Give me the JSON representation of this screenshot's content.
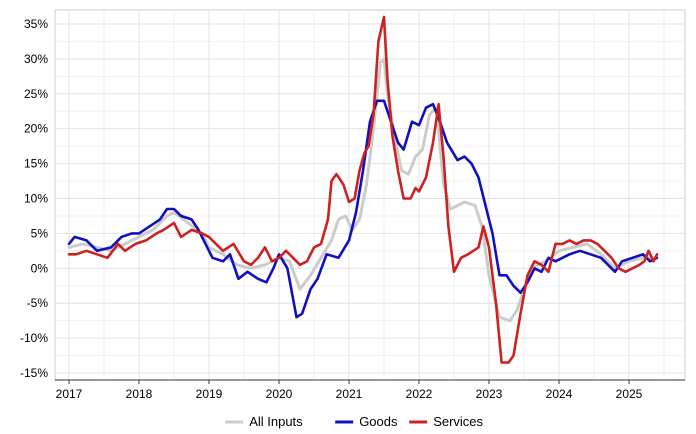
{
  "chart_data": {
    "type": "line",
    "title": "",
    "xlabel": "",
    "ylabel": "",
    "xlim": [
      2016.8,
      2025.8
    ],
    "ylim": [
      -16,
      37
    ],
    "x_ticks": [
      2017,
      2018,
      2019,
      2020,
      2021,
      2022,
      2023,
      2024,
      2025
    ],
    "x_tick_labels": [
      "2017",
      "2018",
      "2019",
      "2020",
      "2021",
      "2022",
      "2023",
      "2024",
      "2025"
    ],
    "y_ticks": [
      -15,
      -10,
      -5,
      0,
      5,
      10,
      15,
      20,
      25,
      30,
      35
    ],
    "y_tick_labels": [
      "-15%",
      "-10%",
      "-5%",
      "0%",
      "5%",
      "10%",
      "15%",
      "20%",
      "25%",
      "30%",
      "35%"
    ],
    "grid": true,
    "legend_position": "bottom",
    "series": [
      {
        "name": "All Inputs",
        "color": "#cccccc",
        "points": [
          [
            2017.0,
            3.0
          ],
          [
            2017.2,
            3.5
          ],
          [
            2017.4,
            3.0
          ],
          [
            2017.6,
            2.5
          ],
          [
            2017.8,
            3.5
          ],
          [
            2018.0,
            4.5
          ],
          [
            2018.2,
            5.5
          ],
          [
            2018.4,
            7.5
          ],
          [
            2018.5,
            8.0
          ],
          [
            2018.7,
            6.5
          ],
          [
            2018.9,
            5.0
          ],
          [
            2019.0,
            3.0
          ],
          [
            2019.2,
            2.0
          ],
          [
            2019.4,
            0.5
          ],
          [
            2019.6,
            0.0
          ],
          [
            2019.8,
            0.5
          ],
          [
            2020.0,
            1.5
          ],
          [
            2020.15,
            1.0
          ],
          [
            2020.3,
            -3.0
          ],
          [
            2020.45,
            -1.0
          ],
          [
            2020.6,
            1.5
          ],
          [
            2020.75,
            4.0
          ],
          [
            2020.85,
            7.0
          ],
          [
            2020.95,
            7.5
          ],
          [
            2021.05,
            5.5
          ],
          [
            2021.15,
            7.0
          ],
          [
            2021.25,
            12.0
          ],
          [
            2021.35,
            20.0
          ],
          [
            2021.45,
            29.5
          ],
          [
            2021.5,
            30.0
          ],
          [
            2021.55,
            25.0
          ],
          [
            2021.65,
            19.0
          ],
          [
            2021.75,
            14.0
          ],
          [
            2021.85,
            13.5
          ],
          [
            2021.95,
            16.0
          ],
          [
            2022.05,
            17.0
          ],
          [
            2022.15,
            22.0
          ],
          [
            2022.25,
            23.0
          ],
          [
            2022.35,
            12.0
          ],
          [
            2022.45,
            8.5
          ],
          [
            2022.55,
            9.0
          ],
          [
            2022.65,
            9.5
          ],
          [
            2022.8,
            9.0
          ],
          [
            2022.9,
            6.0
          ],
          [
            2023.0,
            -1.0
          ],
          [
            2023.15,
            -7.0
          ],
          [
            2023.3,
            -7.5
          ],
          [
            2023.4,
            -6.0
          ],
          [
            2023.5,
            -3.0
          ],
          [
            2023.6,
            0.0
          ],
          [
            2023.8,
            1.0
          ],
          [
            2024.0,
            2.5
          ],
          [
            2024.2,
            3.0
          ],
          [
            2024.4,
            3.5
          ],
          [
            2024.6,
            2.0
          ],
          [
            2024.8,
            0.0
          ],
          [
            2025.0,
            1.0
          ],
          [
            2025.2,
            1.5
          ],
          [
            2025.33,
            1.5
          ]
        ]
      },
      {
        "name": "Goods",
        "color": "#1010c0",
        "points": [
          [
            2017.0,
            3.5
          ],
          [
            2017.08,
            4.5
          ],
          [
            2017.25,
            4.0
          ],
          [
            2017.4,
            2.5
          ],
          [
            2017.6,
            3.0
          ],
          [
            2017.75,
            4.5
          ],
          [
            2017.9,
            5.0
          ],
          [
            2018.0,
            5.0
          ],
          [
            2018.15,
            6.0
          ],
          [
            2018.3,
            7.0
          ],
          [
            2018.4,
            8.5
          ],
          [
            2018.5,
            8.5
          ],
          [
            2018.6,
            7.5
          ],
          [
            2018.75,
            7.0
          ],
          [
            2018.85,
            5.5
          ],
          [
            2018.95,
            3.5
          ],
          [
            2019.05,
            1.5
          ],
          [
            2019.2,
            1.0
          ],
          [
            2019.3,
            2.0
          ],
          [
            2019.42,
            -1.5
          ],
          [
            2019.55,
            -0.5
          ],
          [
            2019.7,
            -1.5
          ],
          [
            2019.82,
            -2.0
          ],
          [
            2019.92,
            0.0
          ],
          [
            2020.0,
            2.0
          ],
          [
            2020.12,
            0.0
          ],
          [
            2020.25,
            -7.0
          ],
          [
            2020.33,
            -6.5
          ],
          [
            2020.45,
            -3.0
          ],
          [
            2020.55,
            -1.5
          ],
          [
            2020.68,
            2.0
          ],
          [
            2020.85,
            1.5
          ],
          [
            2021.0,
            4.0
          ],
          [
            2021.1,
            8.0
          ],
          [
            2021.2,
            14.0
          ],
          [
            2021.3,
            21.0
          ],
          [
            2021.4,
            24.0
          ],
          [
            2021.5,
            24.0
          ],
          [
            2021.6,
            21.0
          ],
          [
            2021.7,
            18.0
          ],
          [
            2021.78,
            17.0
          ],
          [
            2021.9,
            21.0
          ],
          [
            2022.0,
            20.5
          ],
          [
            2022.1,
            23.0
          ],
          [
            2022.2,
            23.5
          ],
          [
            2022.3,
            21.0
          ],
          [
            2022.4,
            18.0
          ],
          [
            2022.55,
            15.5
          ],
          [
            2022.65,
            16.0
          ],
          [
            2022.75,
            15.0
          ],
          [
            2022.85,
            13.0
          ],
          [
            2022.95,
            9.0
          ],
          [
            2023.05,
            5.0
          ],
          [
            2023.15,
            -1.0
          ],
          [
            2023.25,
            -1.0
          ],
          [
            2023.35,
            -2.5
          ],
          [
            2023.45,
            -3.5
          ],
          [
            2023.55,
            -2.0
          ],
          [
            2023.65,
            0.0
          ],
          [
            2023.75,
            -0.5
          ],
          [
            2023.85,
            1.5
          ],
          [
            2023.95,
            1.0
          ],
          [
            2024.05,
            1.5
          ],
          [
            2024.15,
            2.0
          ],
          [
            2024.3,
            2.5
          ],
          [
            2024.45,
            2.0
          ],
          [
            2024.6,
            1.5
          ],
          [
            2024.7,
            0.5
          ],
          [
            2024.8,
            -0.5
          ],
          [
            2024.9,
            1.0
          ],
          [
            2025.05,
            1.5
          ],
          [
            2025.2,
            2.0
          ],
          [
            2025.3,
            1.0
          ],
          [
            2025.4,
            1.5
          ]
        ]
      },
      {
        "name": "Services",
        "color": "#cc2222",
        "points": [
          [
            2017.0,
            2.0
          ],
          [
            2017.1,
            2.0
          ],
          [
            2017.25,
            2.5
          ],
          [
            2017.4,
            2.0
          ],
          [
            2017.55,
            1.5
          ],
          [
            2017.7,
            3.5
          ],
          [
            2017.8,
            2.5
          ],
          [
            2017.95,
            3.5
          ],
          [
            2018.1,
            4.0
          ],
          [
            2018.25,
            5.0
          ],
          [
            2018.35,
            5.5
          ],
          [
            2018.5,
            6.5
          ],
          [
            2018.6,
            4.5
          ],
          [
            2018.75,
            5.5
          ],
          [
            2018.9,
            5.0
          ],
          [
            2019.0,
            4.5
          ],
          [
            2019.1,
            3.5
          ],
          [
            2019.2,
            2.5
          ],
          [
            2019.35,
            3.5
          ],
          [
            2019.5,
            1.0
          ],
          [
            2019.6,
            0.5
          ],
          [
            2019.7,
            1.5
          ],
          [
            2019.8,
            3.0
          ],
          [
            2019.9,
            1.0
          ],
          [
            2020.0,
            1.5
          ],
          [
            2020.1,
            2.5
          ],
          [
            2020.2,
            1.5
          ],
          [
            2020.3,
            0.5
          ],
          [
            2020.4,
            1.0
          ],
          [
            2020.5,
            3.0
          ],
          [
            2020.6,
            3.5
          ],
          [
            2020.7,
            7.0
          ],
          [
            2020.75,
            12.5
          ],
          [
            2020.82,
            13.5
          ],
          [
            2020.92,
            12.0
          ],
          [
            2021.0,
            9.5
          ],
          [
            2021.08,
            10.0
          ],
          [
            2021.15,
            14.0
          ],
          [
            2021.22,
            16.5
          ],
          [
            2021.28,
            17.5
          ],
          [
            2021.35,
            22.0
          ],
          [
            2021.42,
            32.5
          ],
          [
            2021.5,
            36.0
          ],
          [
            2021.55,
            27.0
          ],
          [
            2021.62,
            19.0
          ],
          [
            2021.7,
            14.0
          ],
          [
            2021.78,
            10.0
          ],
          [
            2021.88,
            10.0
          ],
          [
            2021.95,
            11.5
          ],
          [
            2022.0,
            11.0
          ],
          [
            2022.1,
            13.0
          ],
          [
            2022.2,
            18.0
          ],
          [
            2022.28,
            23.5
          ],
          [
            2022.35,
            16.0
          ],
          [
            2022.42,
            6.0
          ],
          [
            2022.5,
            -0.5
          ],
          [
            2022.6,
            1.5
          ],
          [
            2022.7,
            2.0
          ],
          [
            2022.85,
            3.0
          ],
          [
            2022.92,
            6.0
          ],
          [
            2023.0,
            3.0
          ],
          [
            2023.1,
            -5.0
          ],
          [
            2023.18,
            -13.5
          ],
          [
            2023.28,
            -13.5
          ],
          [
            2023.35,
            -12.5
          ],
          [
            2023.45,
            -6.5
          ],
          [
            2023.55,
            -1.0
          ],
          [
            2023.65,
            1.0
          ],
          [
            2023.75,
            0.5
          ],
          [
            2023.85,
            -0.5
          ],
          [
            2023.95,
            3.5
          ],
          [
            2024.05,
            3.5
          ],
          [
            2024.15,
            4.0
          ],
          [
            2024.25,
            3.5
          ],
          [
            2024.35,
            4.0
          ],
          [
            2024.45,
            4.0
          ],
          [
            2024.55,
            3.5
          ],
          [
            2024.65,
            2.5
          ],
          [
            2024.75,
            1.5
          ],
          [
            2024.85,
            0.0
          ],
          [
            2024.95,
            -0.5
          ],
          [
            2025.05,
            0.0
          ],
          [
            2025.15,
            0.5
          ],
          [
            2025.22,
            1.0
          ],
          [
            2025.28,
            2.5
          ],
          [
            2025.35,
            1.0
          ],
          [
            2025.4,
            2.0
          ]
        ]
      }
    ]
  }
}
